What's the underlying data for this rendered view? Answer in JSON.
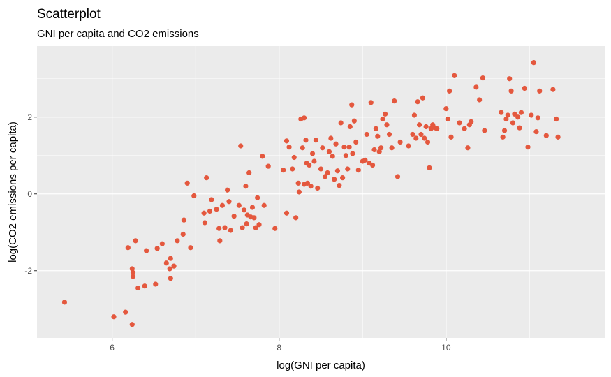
{
  "chart_data": {
    "type": "scatter",
    "title": "Scatterplot",
    "subtitle": "GNI per capita and CO2 emissions",
    "xlabel": "log(GNI per capita)",
    "ylabel": "log(CO2 emissions per capita)",
    "xlim": [
      5.1,
      11.9
    ],
    "ylim": [
      -3.75,
      3.85
    ],
    "x_ticks": [
      6,
      8,
      10
    ],
    "y_ticks": [
      -2,
      0,
      2
    ],
    "grid": true,
    "point_color": "#E4583E",
    "panel_color": "#EBEBEB",
    "points": [
      [
        5.43,
        -2.82
      ],
      [
        6.02,
        -3.2
      ],
      [
        6.16,
        -3.08
      ],
      [
        6.24,
        -3.4
      ],
      [
        6.19,
        -1.4
      ],
      [
        6.28,
        -1.22
      ],
      [
        6.24,
        -1.95
      ],
      [
        6.25,
        -2.05
      ],
      [
        6.25,
        -2.15
      ],
      [
        6.31,
        -2.45
      ],
      [
        6.39,
        -2.4
      ],
      [
        6.41,
        -1.48
      ],
      [
        6.52,
        -2.35
      ],
      [
        6.54,
        -1.42
      ],
      [
        6.6,
        -1.3
      ],
      [
        6.65,
        -1.8
      ],
      [
        6.69,
        -1.95
      ],
      [
        6.7,
        -2.2
      ],
      [
        6.7,
        -1.68
      ],
      [
        6.74,
        -1.88
      ],
      [
        6.78,
        -1.22
      ],
      [
        6.85,
        -1.05
      ],
      [
        6.86,
        -0.68
      ],
      [
        6.9,
        0.28
      ],
      [
        6.94,
        -1.4
      ],
      [
        6.98,
        -0.05
      ],
      [
        7.1,
        -0.5
      ],
      [
        7.11,
        -0.75
      ],
      [
        7.13,
        0.42
      ],
      [
        7.17,
        -0.45
      ],
      [
        7.19,
        -0.15
      ],
      [
        7.25,
        -0.4
      ],
      [
        7.28,
        -0.9
      ],
      [
        7.29,
        -1.22
      ],
      [
        7.32,
        -0.3
      ],
      [
        7.35,
        -0.88
      ],
      [
        7.38,
        0.1
      ],
      [
        7.4,
        -0.2
      ],
      [
        7.42,
        -0.95
      ],
      [
        7.46,
        -0.58
      ],
      [
        7.52,
        -0.3
      ],
      [
        7.54,
        1.25
      ],
      [
        7.56,
        -0.88
      ],
      [
        7.58,
        -0.42
      ],
      [
        7.6,
        0.2
      ],
      [
        7.61,
        -0.78
      ],
      [
        7.62,
        -0.55
      ],
      [
        7.64,
        0.55
      ],
      [
        7.66,
        -0.6
      ],
      [
        7.68,
        -0.35
      ],
      [
        7.7,
        -0.62
      ],
      [
        7.72,
        -0.88
      ],
      [
        7.74,
        -0.1
      ],
      [
        7.76,
        -0.8
      ],
      [
        7.8,
        0.98
      ],
      [
        7.82,
        -0.3
      ],
      [
        7.87,
        0.72
      ],
      [
        7.95,
        -0.9
      ],
      [
        8.05,
        0.62
      ],
      [
        8.09,
        -0.5
      ],
      [
        8.09,
        1.38
      ],
      [
        8.12,
        1.22
      ],
      [
        8.16,
        0.65
      ],
      [
        8.18,
        0.95
      ],
      [
        8.2,
        -0.62
      ],
      [
        8.23,
        0.28
      ],
      [
        8.24,
        0.05
      ],
      [
        8.26,
        1.95
      ],
      [
        8.28,
        1.2
      ],
      [
        8.3,
        1.98
      ],
      [
        8.3,
        0.25
      ],
      [
        8.32,
        1.4
      ],
      [
        8.33,
        0.8
      ],
      [
        8.34,
        0.28
      ],
      [
        8.36,
        0.75
      ],
      [
        8.38,
        0.2
      ],
      [
        8.4,
        1.05
      ],
      [
        8.42,
        0.85
      ],
      [
        8.44,
        1.4
      ],
      [
        8.46,
        0.15
      ],
      [
        8.5,
        0.65
      ],
      [
        8.52,
        1.2
      ],
      [
        8.55,
        0.45
      ],
      [
        8.58,
        0.55
      ],
      [
        8.6,
        1.1
      ],
      [
        8.62,
        1.45
      ],
      [
        8.64,
        0.98
      ],
      [
        8.66,
        0.38
      ],
      [
        8.68,
        1.3
      ],
      [
        8.7,
        0.6
      ],
      [
        8.72,
        0.22
      ],
      [
        8.74,
        1.85
      ],
      [
        8.76,
        0.42
      ],
      [
        8.78,
        1.22
      ],
      [
        8.8,
        1.0
      ],
      [
        8.82,
        0.65
      ],
      [
        8.84,
        1.22
      ],
      [
        8.85,
        1.75
      ],
      [
        8.87,
        2.32
      ],
      [
        8.88,
        1.05
      ],
      [
        8.9,
        1.9
      ],
      [
        8.92,
        1.35
      ],
      [
        8.95,
        0.62
      ],
      [
        9.0,
        0.85
      ],
      [
        9.03,
        0.88
      ],
      [
        9.05,
        1.55
      ],
      [
        9.08,
        0.8
      ],
      [
        9.1,
        2.38
      ],
      [
        9.12,
        0.75
      ],
      [
        9.14,
        1.15
      ],
      [
        9.16,
        1.7
      ],
      [
        9.18,
        1.5
      ],
      [
        9.2,
        1.1
      ],
      [
        9.22,
        1.2
      ],
      [
        9.24,
        1.95
      ],
      [
        9.27,
        2.08
      ],
      [
        9.29,
        1.8
      ],
      [
        9.32,
        1.55
      ],
      [
        9.35,
        1.2
      ],
      [
        9.38,
        2.42
      ],
      [
        9.42,
        0.45
      ],
      [
        9.45,
        1.35
      ],
      [
        9.55,
        1.25
      ],
      [
        9.6,
        1.55
      ],
      [
        9.62,
        2.05
      ],
      [
        9.64,
        1.45
      ],
      [
        9.66,
        2.4
      ],
      [
        9.68,
        1.8
      ],
      [
        9.7,
        1.55
      ],
      [
        9.72,
        2.5
      ],
      [
        9.74,
        1.45
      ],
      [
        9.76,
        1.75
      ],
      [
        9.78,
        1.35
      ],
      [
        9.8,
        0.68
      ],
      [
        9.82,
        1.7
      ],
      [
        9.84,
        1.8
      ],
      [
        9.87,
        1.72
      ],
      [
        9.89,
        1.7
      ],
      [
        10.0,
        2.22
      ],
      [
        10.02,
        1.95
      ],
      [
        10.04,
        2.68
      ],
      [
        10.06,
        1.48
      ],
      [
        10.1,
        3.08
      ],
      [
        10.16,
        1.85
      ],
      [
        10.22,
        1.7
      ],
      [
        10.26,
        1.2
      ],
      [
        10.28,
        1.8
      ],
      [
        10.3,
        1.88
      ],
      [
        10.36,
        2.78
      ],
      [
        10.4,
        2.45
      ],
      [
        10.44,
        3.02
      ],
      [
        10.46,
        1.65
      ],
      [
        10.66,
        2.12
      ],
      [
        10.68,
        1.48
      ],
      [
        10.7,
        1.65
      ],
      [
        10.72,
        1.95
      ],
      [
        10.74,
        2.05
      ],
      [
        10.76,
        3.0
      ],
      [
        10.78,
        2.68
      ],
      [
        10.8,
        1.85
      ],
      [
        10.82,
        2.08
      ],
      [
        10.86,
        2.0
      ],
      [
        10.88,
        1.72
      ],
      [
        10.9,
        2.12
      ],
      [
        10.94,
        2.75
      ],
      [
        10.98,
        1.22
      ],
      [
        11.02,
        2.05
      ],
      [
        11.05,
        3.42
      ],
      [
        11.08,
        1.62
      ],
      [
        11.1,
        1.98
      ],
      [
        11.12,
        2.68
      ],
      [
        11.2,
        1.52
      ],
      [
        11.28,
        2.72
      ],
      [
        11.32,
        1.95
      ],
      [
        11.34,
        1.48
      ]
    ]
  }
}
